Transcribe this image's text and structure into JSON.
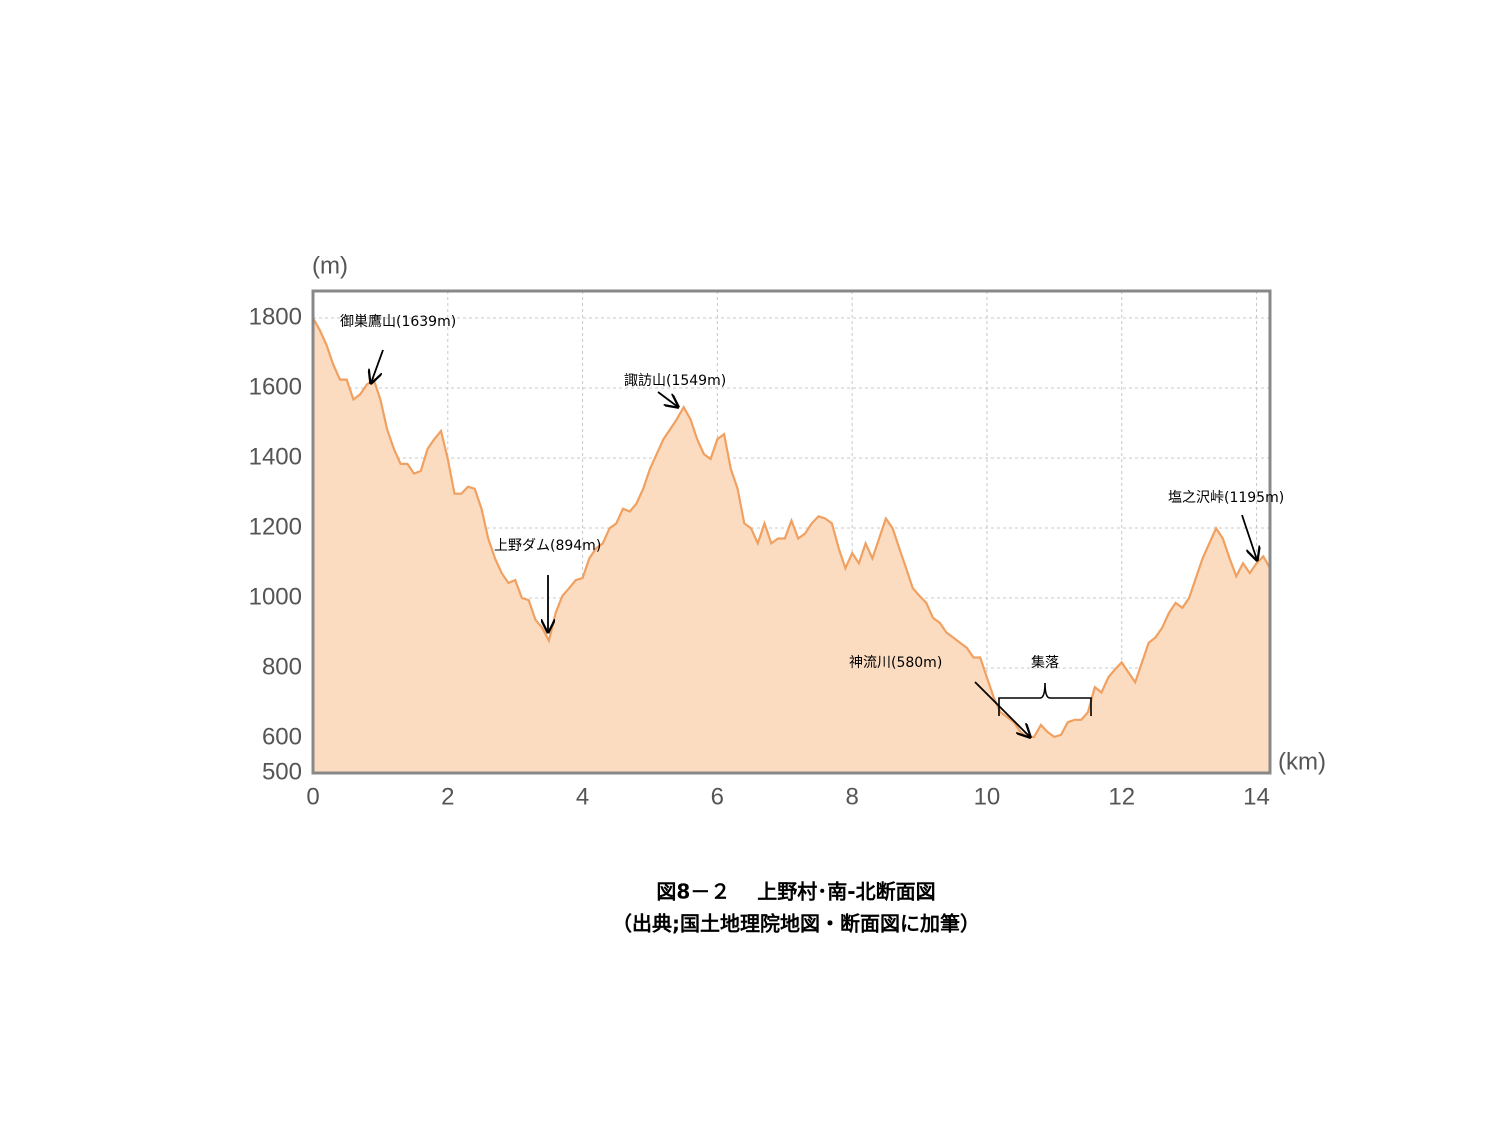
{
  "chart_data": {
    "type": "area",
    "caption": [
      "図8－２　 上野村･南-北断面図",
      "（出典;国土地理院地図・断面図に加筆）"
    ],
    "ylabel": "(m)",
    "xlabel": "(km)",
    "x": [
      0,
      0.1,
      0.2,
      0.3,
      0.4,
      0.5,
      0.6,
      0.7,
      0.8,
      0.9,
      1.0,
      1.1,
      1.2,
      1.3,
      1.4,
      1.5,
      1.6,
      1.7,
      1.8,
      1.9,
      2.0,
      2.1,
      2.2,
      2.3,
      2.4,
      2.5,
      2.6,
      2.7,
      2.8,
      2.9,
      3.0,
      3.1,
      3.2,
      3.3,
      3.4,
      3.5,
      3.6,
      3.7,
      3.8,
      3.9,
      4.0,
      4.1,
      4.2,
      4.3,
      4.4,
      4.5,
      4.6,
      4.7,
      4.8,
      4.9,
      5.0,
      5.1,
      5.2,
      5.3,
      5.4,
      5.5,
      5.6,
      5.7,
      5.8,
      5.9,
      6.0,
      6.1,
      6.2,
      6.3,
      6.4,
      6.5,
      6.6,
      6.7,
      6.8,
      6.9,
      7.0,
      7.1,
      7.2,
      7.3,
      7.4,
      7.5,
      7.6,
      7.7,
      7.8,
      7.9,
      8.0,
      8.1,
      8.2,
      8.3,
      8.4,
      8.5,
      8.6,
      8.7,
      8.8,
      8.9,
      9.0,
      9.1,
      9.2,
      9.3,
      9.4,
      9.5,
      9.6,
      9.7,
      9.8,
      9.9,
      10.0,
      10.1,
      10.2,
      10.3,
      10.4,
      10.5,
      10.6,
      10.7,
      10.8,
      10.9,
      11.0,
      11.1,
      11.2,
      11.3,
      11.4,
      11.5,
      11.6,
      11.7,
      11.8,
      11.9,
      12.0,
      12.1,
      12.2,
      12.3,
      12.4,
      12.5,
      12.6,
      12.7,
      12.8,
      12.9,
      13.0,
      13.1,
      13.2,
      13.3,
      13.4,
      13.5,
      13.6,
      13.7,
      13.8,
      13.9,
      14.0,
      14.1,
      14.2
    ],
    "values": [
      1800,
      1766,
      1723,
      1667,
      1624,
      1624,
      1567,
      1582,
      1610,
      1624,
      1567,
      1482,
      1426,
      1383,
      1383,
      1355,
      1363,
      1426,
      1454,
      1477,
      1397,
      1298,
      1298,
      1318,
      1312,
      1255,
      1170,
      1113,
      1071,
      1043,
      1051,
      1000,
      994,
      938,
      915,
      878,
      957,
      1006,
      1028,
      1051,
      1057,
      1113,
      1142,
      1156,
      1199,
      1213,
      1255,
      1247,
      1270,
      1312,
      1369,
      1411,
      1454,
      1482,
      1511,
      1545,
      1511,
      1454,
      1411,
      1397,
      1454,
      1468,
      1369,
      1312,
      1213,
      1199,
      1156,
      1213,
      1156,
      1170,
      1170,
      1221,
      1170,
      1184,
      1213,
      1233,
      1227,
      1213,
      1142,
      1085,
      1128,
      1099,
      1156,
      1113,
      1170,
      1227,
      1199,
      1142,
      1085,
      1028,
      1006,
      986,
      943,
      929,
      901,
      887,
      872,
      858,
      830,
      830,
      773,
      716,
      674,
      660,
      645,
      617,
      603,
      603,
      637,
      617,
      603,
      609,
      645,
      652,
      652,
      674,
      745,
      730,
      773,
      796,
      816,
      787,
      759,
      816,
      872,
      887,
      915,
      957,
      986,
      972,
      1000,
      1057,
      1113,
      1156,
      1199,
      1170,
      1113,
      1062,
      1099,
      1071,
      1099,
      1119,
      1085
    ],
    "color": "#f0a060",
    "fill_color": "#fcdcc0",
    "xlim": [
      0,
      14.2
    ],
    "ylim": [
      500,
      1877
    ],
    "xticks": [
      0,
      2,
      4,
      6,
      8,
      10,
      12,
      14
    ],
    "yticks": [
      500,
      600,
      800,
      1000,
      1200,
      1400,
      1600,
      1800
    ],
    "grid": true,
    "annotations": [
      "御巣鷹山(1639m)",
      "諏訪山(1549m)",
      "上野ダム(894m)",
      "神流川(580m)",
      "集落",
      "塩之沢峠(1195m)"
    ]
  }
}
